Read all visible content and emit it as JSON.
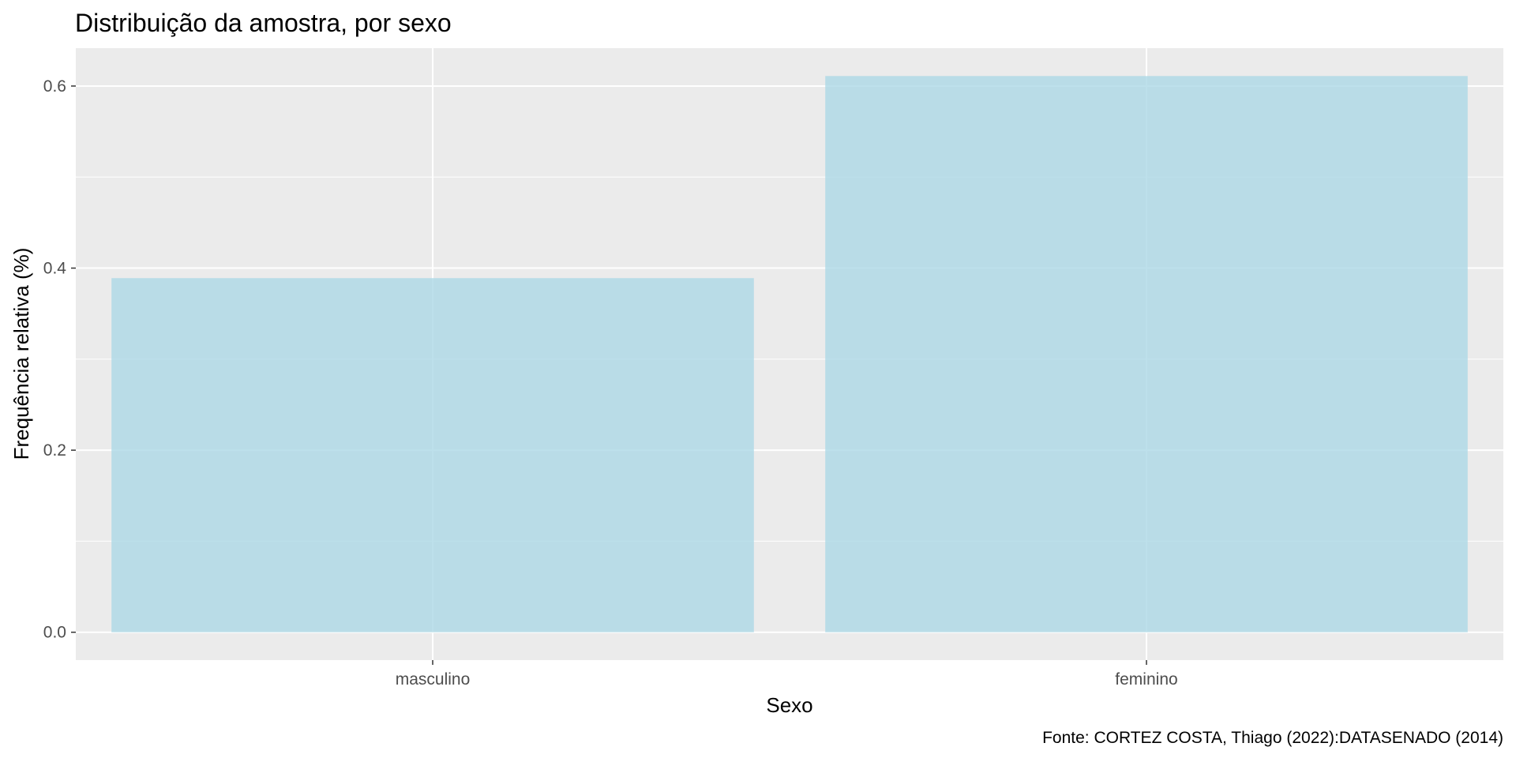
{
  "chart_data": {
    "type": "bar",
    "title": "Distribuição da amostra, por sexo",
    "xlabel": "Sexo",
    "ylabel": "Frequência relativa (%)",
    "caption": "Fonte: CORTEZ COSTA, Thiago (2022):DATASENADO (2014)",
    "categories": [
      "masculino",
      "feminino"
    ],
    "values": [
      0.389,
      0.611
    ],
    "ylim": [
      -0.0306,
      0.6416
    ],
    "yticks": [
      0.0,
      0.2,
      0.4,
      0.6
    ],
    "ytick_labels": [
      "0.0",
      "0.2",
      "0.4",
      "0.6"
    ],
    "grid": true,
    "bar_color": "#add8e6",
    "bar_opacity": 0.8,
    "panel_color": "#ebebeb",
    "grid_color": "#ffffff"
  }
}
